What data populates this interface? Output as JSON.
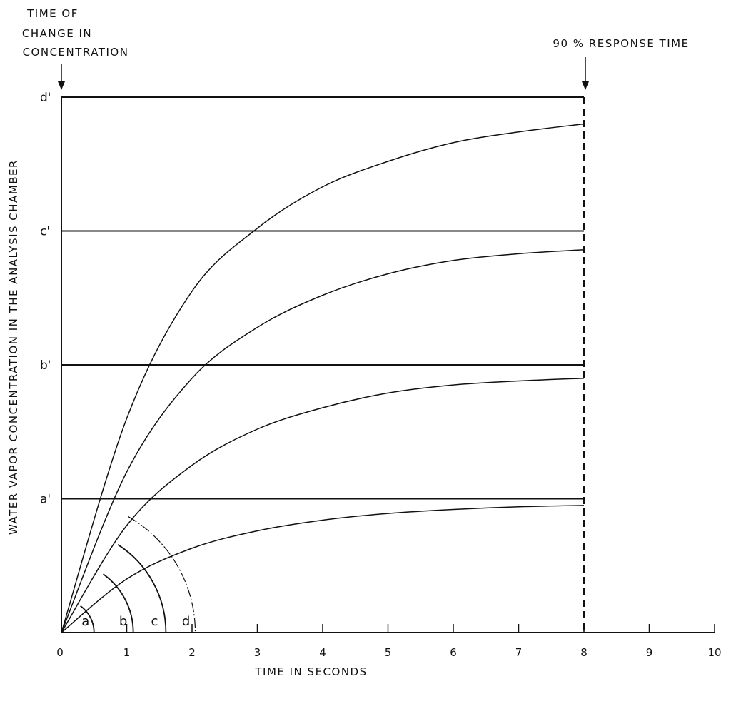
{
  "chart_data": {
    "type": "line",
    "title": "",
    "annotation_left": [
      "TIME OF",
      "CHANGE IN",
      "CONCENTRATION"
    ],
    "annotation_right": "90 % RESPONSE TIME",
    "xlabel": "TIME IN SECONDS",
    "ylabel": "WATER VAPOR CONCENTRATION IN THE ANALYSIS CHAMBER",
    "xlim": [
      0,
      10
    ],
    "x_ticks": [
      0,
      1,
      2,
      3,
      4,
      5,
      6,
      7,
      8,
      9,
      10
    ],
    "x_tick_labels": [
      "0",
      "1",
      "2",
      "3",
      "4",
      "5",
      "6",
      "7",
      "8",
      "9",
      "10"
    ],
    "ylim": [
      0,
      4
    ],
    "response_time_marker_x": 8,
    "levels": [
      {
        "label": "a'",
        "y": 1.0
      },
      {
        "label": "b'",
        "y": 2.0
      },
      {
        "label": "c'",
        "y": 3.0
      },
      {
        "label": "d'",
        "y": 4.0
      }
    ],
    "series": [
      {
        "label_arc": "a",
        "x": [
          0,
          1,
          2,
          3,
          4,
          5,
          6,
          7,
          8
        ],
        "y": [
          0,
          0.4,
          0.63,
          0.76,
          0.84,
          0.89,
          0.92,
          0.94,
          0.95
        ]
      },
      {
        "label_arc": "b",
        "x": [
          0,
          1,
          2,
          3,
          4,
          5,
          6,
          7,
          8
        ],
        "y": [
          0,
          0.8,
          1.25,
          1.52,
          1.68,
          1.79,
          1.85,
          1.88,
          1.9
        ]
      },
      {
        "label_arc": "c",
        "x": [
          0,
          1,
          2,
          3,
          4,
          5,
          6,
          7,
          8
        ],
        "y": [
          0,
          1.2,
          1.9,
          2.28,
          2.52,
          2.68,
          2.78,
          2.83,
          2.86
        ]
      },
      {
        "label_arc": "d",
        "x": [
          0,
          1,
          2,
          3,
          4,
          5,
          6,
          7,
          8
        ],
        "y": [
          0,
          1.6,
          2.55,
          3.02,
          3.33,
          3.52,
          3.66,
          3.74,
          3.8
        ]
      }
    ],
    "arcs": [
      {
        "label": "a",
        "radius_seconds": 0.5
      },
      {
        "label": "b",
        "radius_seconds": 1.1
      },
      {
        "label": "c",
        "radius_seconds": 1.6
      },
      {
        "label": "d",
        "radius_seconds": 2.05
      }
    ],
    "grid": false,
    "legend": "none"
  }
}
